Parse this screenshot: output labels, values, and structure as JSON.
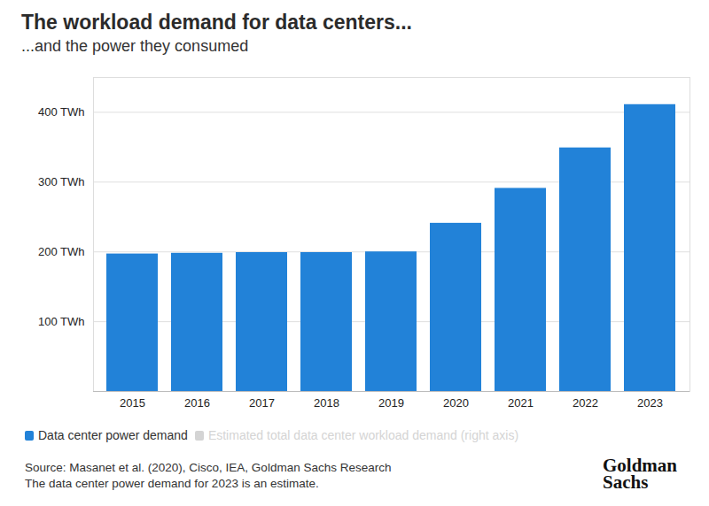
{
  "chart_data": {
    "type": "bar",
    "title": "The workload demand for data centers...",
    "subtitle": "...and the power they consumed",
    "categories": [
      "2015",
      "2016",
      "2017",
      "2018",
      "2019",
      "2020",
      "2021",
      "2022",
      "2023"
    ],
    "series": [
      {
        "name": "Data center power demand",
        "color": "#2282d8",
        "values": [
          197,
          198,
          199,
          199,
          200,
          241,
          291,
          349,
          411
        ]
      },
      {
        "name": "Estimated total data center workload demand (right axis)",
        "color": "#d4d4d4",
        "values": [
          null,
          null,
          null,
          null,
          null,
          null,
          null,
          null,
          null
        ]
      }
    ],
    "ylim": [
      0,
      450
    ],
    "yticks": [
      {
        "value": 100,
        "label": "100 TWh"
      },
      {
        "value": 200,
        "label": "200 TWh"
      },
      {
        "value": 300,
        "label": "300 TWh"
      },
      {
        "value": 400,
        "label": "400 TWh"
      }
    ],
    "grid": true,
    "legend": "bottom",
    "source": "Source: Masanet et al. (2020), Cisco, IEA, Goldman Sachs Research",
    "note": "The data center power demand for 2023 is an estimate.",
    "logo": "Goldman Sachs"
  }
}
